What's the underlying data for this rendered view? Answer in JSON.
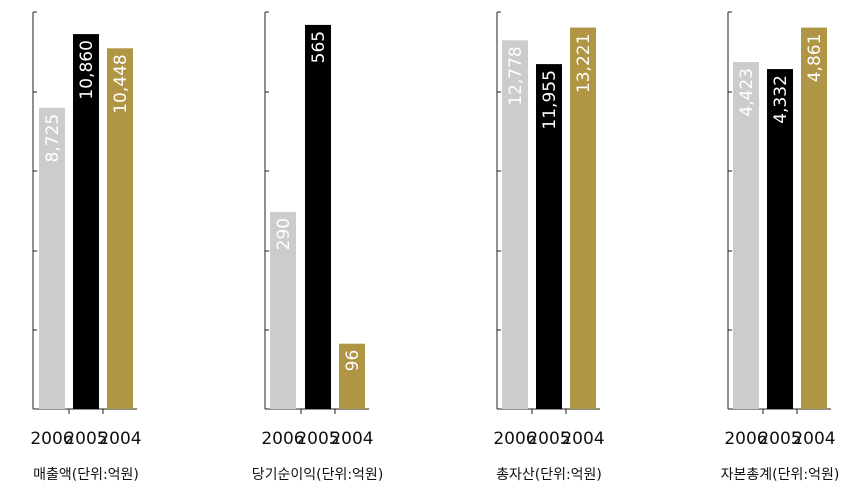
{
  "chart_data": [
    {
      "type": "bar",
      "title": "매출액(단위:억원)",
      "categories": [
        "2006",
        "2005",
        "2004"
      ],
      "values": [
        8725,
        10860,
        10448
      ],
      "value_labels": [
        "8,725",
        "10,860",
        "10,448"
      ],
      "colors": [
        "#cccccc",
        "#000000",
        "#b09545"
      ],
      "ylim": [
        0,
        11500
      ],
      "grid": false
    },
    {
      "type": "bar",
      "title": "당기순이익(단위:억원)",
      "categories": [
        "2006",
        "2005",
        "2004"
      ],
      "values": [
        290,
        565,
        96
      ],
      "value_labels": [
        "290",
        "565",
        "96"
      ],
      "colors": [
        "#cccccc",
        "#000000",
        "#b09545"
      ],
      "ylim": [
        0,
        584
      ],
      "grid": false
    },
    {
      "type": "bar",
      "title": "총자산(단위:억원)",
      "categories": [
        "2006",
        "2005",
        "2004"
      ],
      "values": [
        12778,
        11955,
        13221
      ],
      "value_labels": [
        "12,778",
        "11,955",
        "13,221"
      ],
      "colors": [
        "#cccccc",
        "#000000",
        "#b09545"
      ],
      "ylim": [
        0,
        13760
      ],
      "grid": false
    },
    {
      "type": "bar",
      "title": "자본총계(단위:억원)",
      "categories": [
        "2006",
        "2005",
        "2004"
      ],
      "values": [
        4423,
        4332,
        4861
      ],
      "value_labels": [
        "4,423",
        "4,332",
        "4,861"
      ],
      "colors": [
        "#cccccc",
        "#000000",
        "#b09545"
      ],
      "ylim": [
        0,
        5060
      ],
      "grid": false
    }
  ]
}
